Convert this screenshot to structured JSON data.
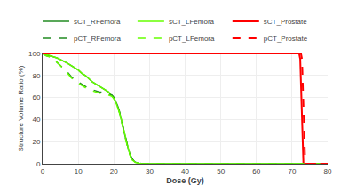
{
  "chart_data": {
    "type": "line",
    "xlabel": "Dose (Gy)",
    "ylabel": "Structure Volume Ratio (%)",
    "xlim": [
      0,
      80
    ],
    "ylim": [
      0,
      100
    ],
    "xticks": [
      0,
      10,
      20,
      30,
      40,
      50,
      60,
      70,
      80
    ],
    "yticks": [
      0,
      20,
      40,
      60,
      80,
      100
    ],
    "grid": true,
    "legend": "upper right",
    "series": [
      {
        "name": "sCT_RFemora",
        "color": "#228B22",
        "line_style": "solid",
        "x": [
          0,
          0.5,
          1,
          2,
          3,
          4,
          5,
          6,
          7,
          8,
          9,
          10,
          11,
          12,
          13,
          14,
          15,
          16,
          17,
          18,
          18.5,
          19,
          19.5,
          20,
          20.5,
          21,
          21.5,
          22,
          22.3,
          22.6,
          23,
          23.5,
          24,
          24.5,
          25,
          25.5,
          26,
          27,
          28,
          30,
          80
        ],
        "values": [
          100,
          99.5,
          99,
          98.5,
          97.5,
          96,
          94.5,
          93,
          91,
          89,
          87,
          85,
          82,
          80,
          77,
          74,
          72,
          70,
          68,
          66,
          65,
          63,
          62,
          60,
          57,
          53,
          48,
          42,
          38,
          33,
          27,
          20,
          14,
          9,
          5,
          3,
          1.5,
          0.5,
          0.1,
          0,
          0
        ]
      },
      {
        "name": "sCT_LFemora",
        "color": "#66FF00",
        "line_style": "solid",
        "x": [
          0,
          0.5,
          1,
          2,
          3,
          4,
          5,
          6,
          7,
          8,
          9,
          10,
          11,
          12,
          13,
          14,
          15,
          16,
          17,
          18,
          18.5,
          19,
          19.5,
          20,
          20.5,
          21,
          21.5,
          22,
          22.3,
          22.6,
          23,
          23.5,
          24,
          24.5,
          25,
          25.5,
          26,
          27,
          28,
          30,
          80
        ],
        "values": [
          100,
          99.5,
          99,
          98.5,
          97.5,
          96,
          94.5,
          93,
          91,
          89,
          87,
          85,
          82,
          80,
          77,
          74,
          72,
          70,
          68,
          66,
          65,
          63,
          61,
          59,
          56,
          52,
          47,
          41,
          37,
          32,
          26,
          19,
          13,
          8,
          4,
          2.5,
          1.2,
          0.4,
          0.05,
          0,
          0
        ]
      },
      {
        "name": "sCT_Prostate",
        "color": "#FF0000",
        "line_style": "solid",
        "x": [
          0,
          72.0,
          72.3,
          72.6,
          72.9,
          73.2,
          80
        ],
        "values": [
          100,
          100,
          95,
          60,
          15,
          0,
          0
        ]
      },
      {
        "name": "pCT_RFemora",
        "color": "#228B22",
        "line_style": "dashed",
        "x": [
          0,
          0.5,
          1,
          2,
          3,
          4,
          5,
          6,
          7,
          8,
          9,
          10,
          11,
          12,
          13,
          14,
          15,
          16,
          17,
          18,
          18.5,
          19,
          19.5,
          20,
          20.5,
          21,
          21.5,
          22,
          22.3,
          22.6,
          23,
          23.5,
          24,
          24.5,
          25,
          25.5,
          26,
          27,
          28,
          30,
          80
        ],
        "values": [
          100,
          99,
          98,
          97,
          95,
          92,
          89,
          86,
          83,
          79,
          76,
          74,
          72,
          70,
          68,
          67,
          66,
          65,
          65,
          64,
          63,
          63,
          62,
          60,
          57,
          53,
          48,
          42,
          38,
          33,
          27,
          20,
          14,
          9,
          5,
          3,
          1.5,
          0.5,
          0.1,
          0,
          0
        ]
      },
      {
        "name": "pCT_LFemora",
        "color": "#66FF00",
        "line_style": "dashed",
        "x": [
          0,
          0.5,
          1,
          2,
          3,
          4,
          5,
          6,
          7,
          8,
          9,
          10,
          11,
          12,
          13,
          14,
          15,
          16,
          17,
          18,
          18.5,
          19,
          19.5,
          20,
          20.5,
          21,
          21.5,
          22,
          22.3,
          22.6,
          23,
          23.5,
          24,
          24.5,
          25,
          25.5,
          26,
          27,
          28,
          30,
          80
        ],
        "values": [
          100,
          99,
          98,
          97,
          95,
          92,
          89,
          85,
          82,
          78,
          75,
          73,
          71,
          69,
          67,
          66,
          65,
          64,
          64,
          63,
          62,
          62,
          61,
          59,
          56,
          52,
          47,
          41,
          37,
          32,
          26,
          19,
          13,
          8,
          4,
          2.5,
          1.2,
          0.4,
          0.05,
          0,
          0
        ]
      },
      {
        "name": "pCT_Prostate",
        "color": "#FF0000",
        "line_style": "dashed",
        "x": [
          0,
          72.5,
          72.8,
          73.1,
          73.4,
          73.7,
          80
        ],
        "values": [
          100,
          100,
          95,
          60,
          15,
          0,
          0
        ]
      }
    ]
  }
}
